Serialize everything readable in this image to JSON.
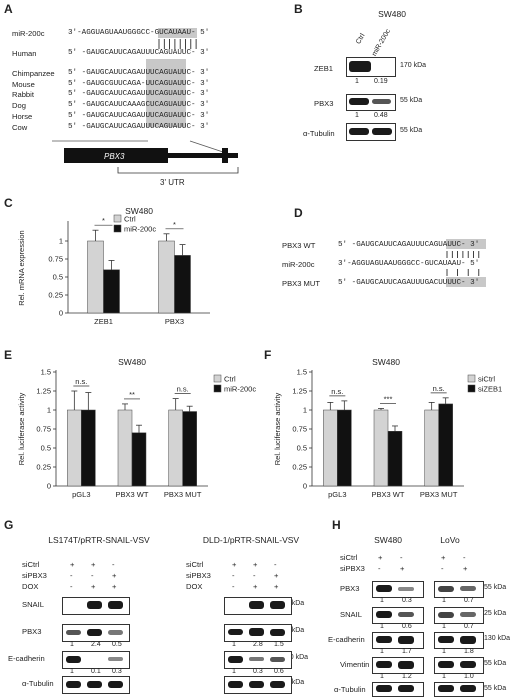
{
  "panels": [
    "A",
    "B",
    "C",
    "D",
    "E",
    "F",
    "G",
    "H"
  ],
  "panelA": {
    "mir": {
      "name": "miR-200c",
      "seq": "3'-AGGUAGUAAUGGGCC-GUCAUAAU- 5'"
    },
    "human": {
      "name": "Human",
      "seq": "5' -GAUGCAUUCAGAUUUCAGUAUUC- 3'"
    },
    "species": [
      {
        "name": "Chimpanzee",
        "seq": "5' -GAUGCAUUCAGAUUUCAGUAUUC- 3'"
      },
      {
        "name": "Mouse",
        "seq": "5' -GAUGCGUUCAGA-UUCAGUAUUC- 3'"
      },
      {
        "name": "Rabbit",
        "seq": "5' -GAUGCAUUCAGAUUUCAGUAUUC- 3'"
      },
      {
        "name": "Dog",
        "seq": "5' -GAUGCAUUCAAAGCUCAGUAUUC- 3'"
      },
      {
        "name": "Horse",
        "seq": "5' -GAUGCAUUCAGAUUUCAGUAUUC- 3'"
      },
      {
        "name": "Cow",
        "seq": "5' -GAUGCAUUCAGAUUUCAGUAUUC- 3'"
      }
    ],
    "gene": "PBX3",
    "utr": "3' UTR"
  },
  "panelB": {
    "cell": "SW480",
    "lanes": [
      "Ctrl",
      "miR-200c"
    ],
    "rows": [
      {
        "name": "ZEB1",
        "kda": "170 kDa",
        "quant": [
          "1",
          "0.19"
        ]
      },
      {
        "name": "PBX3",
        "kda": "55 kDa",
        "quant": [
          "1",
          "0.48"
        ]
      },
      {
        "name": "α-Tubulin",
        "kda": "55 kDa",
        "quant": []
      }
    ]
  },
  "panelC": {
    "title": "SW480",
    "ylabel": "Rel. mRNA expression",
    "legend": [
      "Ctrl",
      "miR-200c"
    ],
    "sig": [
      "*",
      "*"
    ]
  },
  "panelD": {
    "rows": [
      {
        "name": "PBX3 WT",
        "seq": "5' -GAUGCAUUCAGAUUUCAGUAUUC- 3'"
      },
      {
        "name": "miR-200c",
        "seq": "3'-AGGUAGUAAUGGGCC-GUCAUAAU- 5'"
      },
      {
        "name": "PBX3 MUT",
        "seq": "5' -GAUGCAUUCAGAUUUGACUUUUC- 3'"
      }
    ]
  },
  "panelE": {
    "title": "SW480",
    "ylabel": "Rel. luciferase activity",
    "legend": [
      "Ctrl",
      "miR-200c"
    ],
    "sig": [
      "n.s.",
      "**",
      "n.s."
    ]
  },
  "panelF": {
    "title": "SW480",
    "ylabel": "Rel. luciferase activity",
    "legend": [
      "siCtrl",
      "siZEB1"
    ],
    "sig": [
      "n.s.",
      "***",
      "n.s."
    ]
  },
  "panelG": {
    "left_title": "LS174T/pRTR-SNAIL-VSV",
    "right_title": "DLD-1/pRTR-SNAIL-VSV",
    "conds": [
      {
        "name": "siCtrl",
        "vals": [
          "+",
          "+",
          "-"
        ]
      },
      {
        "name": "siPBX3",
        "vals": [
          "-",
          "-",
          "+"
        ]
      },
      {
        "name": "DOX",
        "vals": [
          "-",
          "+",
          "+"
        ]
      }
    ],
    "rows": [
      {
        "name": "SNAIL",
        "kda": "25 kDa"
      },
      {
        "name": "PBX3",
        "kda": "55 kDa"
      },
      {
        "name": "E-cadherin",
        "kda": "130 kDa"
      },
      {
        "name": "α-Tubulin",
        "kda": "55 kDa"
      }
    ],
    "left_pbx3": [
      "1",
      "2.4",
      "0.5"
    ],
    "left_ecad": [
      "1",
      "0.1",
      "0.3"
    ],
    "right_pbx3": [
      "1",
      "2.8",
      "1.5"
    ],
    "right_ecad": [
      "1",
      "0.3",
      "0.6"
    ]
  },
  "panelH": {
    "left_title": "SW480",
    "right_title": "LoVo",
    "conds": [
      {
        "name": "siCtrl",
        "vals": [
          "+",
          "-"
        ]
      },
      {
        "name": "siPBX3",
        "vals": [
          "-",
          "+"
        ]
      }
    ],
    "rows": [
      {
        "name": "PBX3",
        "kda": "55 kDa",
        "left": [
          "1",
          "0.3"
        ],
        "right": [
          "1",
          "0.7"
        ]
      },
      {
        "name": "SNAIL",
        "kda": "25 kDa",
        "left": [
          "1",
          "0.6"
        ],
        "right": [
          "1",
          "0.7"
        ]
      },
      {
        "name": "E-cadherin",
        "kda": "130 kDa",
        "left": [
          "1",
          "1.7"
        ],
        "right": [
          "1",
          "1.8"
        ]
      },
      {
        "name": "Vimentin",
        "kda": "55 kDa",
        "left": [
          "1",
          "1.2"
        ],
        "right": [
          "1",
          "1.0"
        ]
      },
      {
        "name": "α-Tubulin",
        "kda": "55 kDa",
        "left": [],
        "right": []
      }
    ]
  },
  "chart_data": [
    {
      "type": "bar",
      "title": "SW480",
      "ylabel": "Rel. mRNA expression",
      "categories": [
        "ZEB1",
        "PBX3"
      ],
      "ylim": [
        0,
        1.25
      ],
      "yticks": [
        0,
        0.25,
        0.5,
        0.75,
        1
      ],
      "series": [
        {
          "name": "Ctrl",
          "values": [
            1.0,
            1.0
          ],
          "err": [
            0.15,
            0.1
          ]
        },
        {
          "name": "miR-200c",
          "values": [
            0.6,
            0.8
          ],
          "err": [
            0.13,
            0.15
          ]
        }
      ],
      "colors": [
        "#d3d3d3",
        "#111111"
      ]
    },
    {
      "type": "bar",
      "title": "SW480",
      "ylabel": "Rel. luciferase activity",
      "categories": [
        "pGL3",
        "PBX3 WT",
        "PBX3 MUT"
      ],
      "ylim": [
        0,
        1.5
      ],
      "yticks": [
        0,
        0.25,
        0.5,
        0.75,
        1,
        1.25,
        1.5
      ],
      "series": [
        {
          "name": "Ctrl",
          "values": [
            1.0,
            1.0,
            1.0
          ],
          "err": [
            0.25,
            0.08,
            0.15
          ]
        },
        {
          "name": "miR-200c",
          "values": [
            1.0,
            0.7,
            0.98
          ],
          "err": [
            0.23,
            0.1,
            0.07
          ]
        }
      ],
      "colors": [
        "#d3d3d3",
        "#111111"
      ]
    },
    {
      "type": "bar",
      "title": "SW480",
      "ylabel": "Rel. luciferase activity",
      "categories": [
        "pGL3",
        "PBX3 WT",
        "PBX3 MUT"
      ],
      "ylim": [
        0,
        1.5
      ],
      "yticks": [
        0,
        0.25,
        0.5,
        0.75,
        1,
        1.25,
        1.5
      ],
      "series": [
        {
          "name": "siCtrl",
          "values": [
            1.0,
            1.0,
            1.0
          ],
          "err": [
            0.1,
            0.02,
            0.1
          ]
        },
        {
          "name": "siZEB1",
          "values": [
            1.0,
            0.72,
            1.08
          ],
          "err": [
            0.12,
            0.07,
            0.08
          ]
        }
      ],
      "colors": [
        "#d3d3d3",
        "#111111"
      ]
    }
  ]
}
